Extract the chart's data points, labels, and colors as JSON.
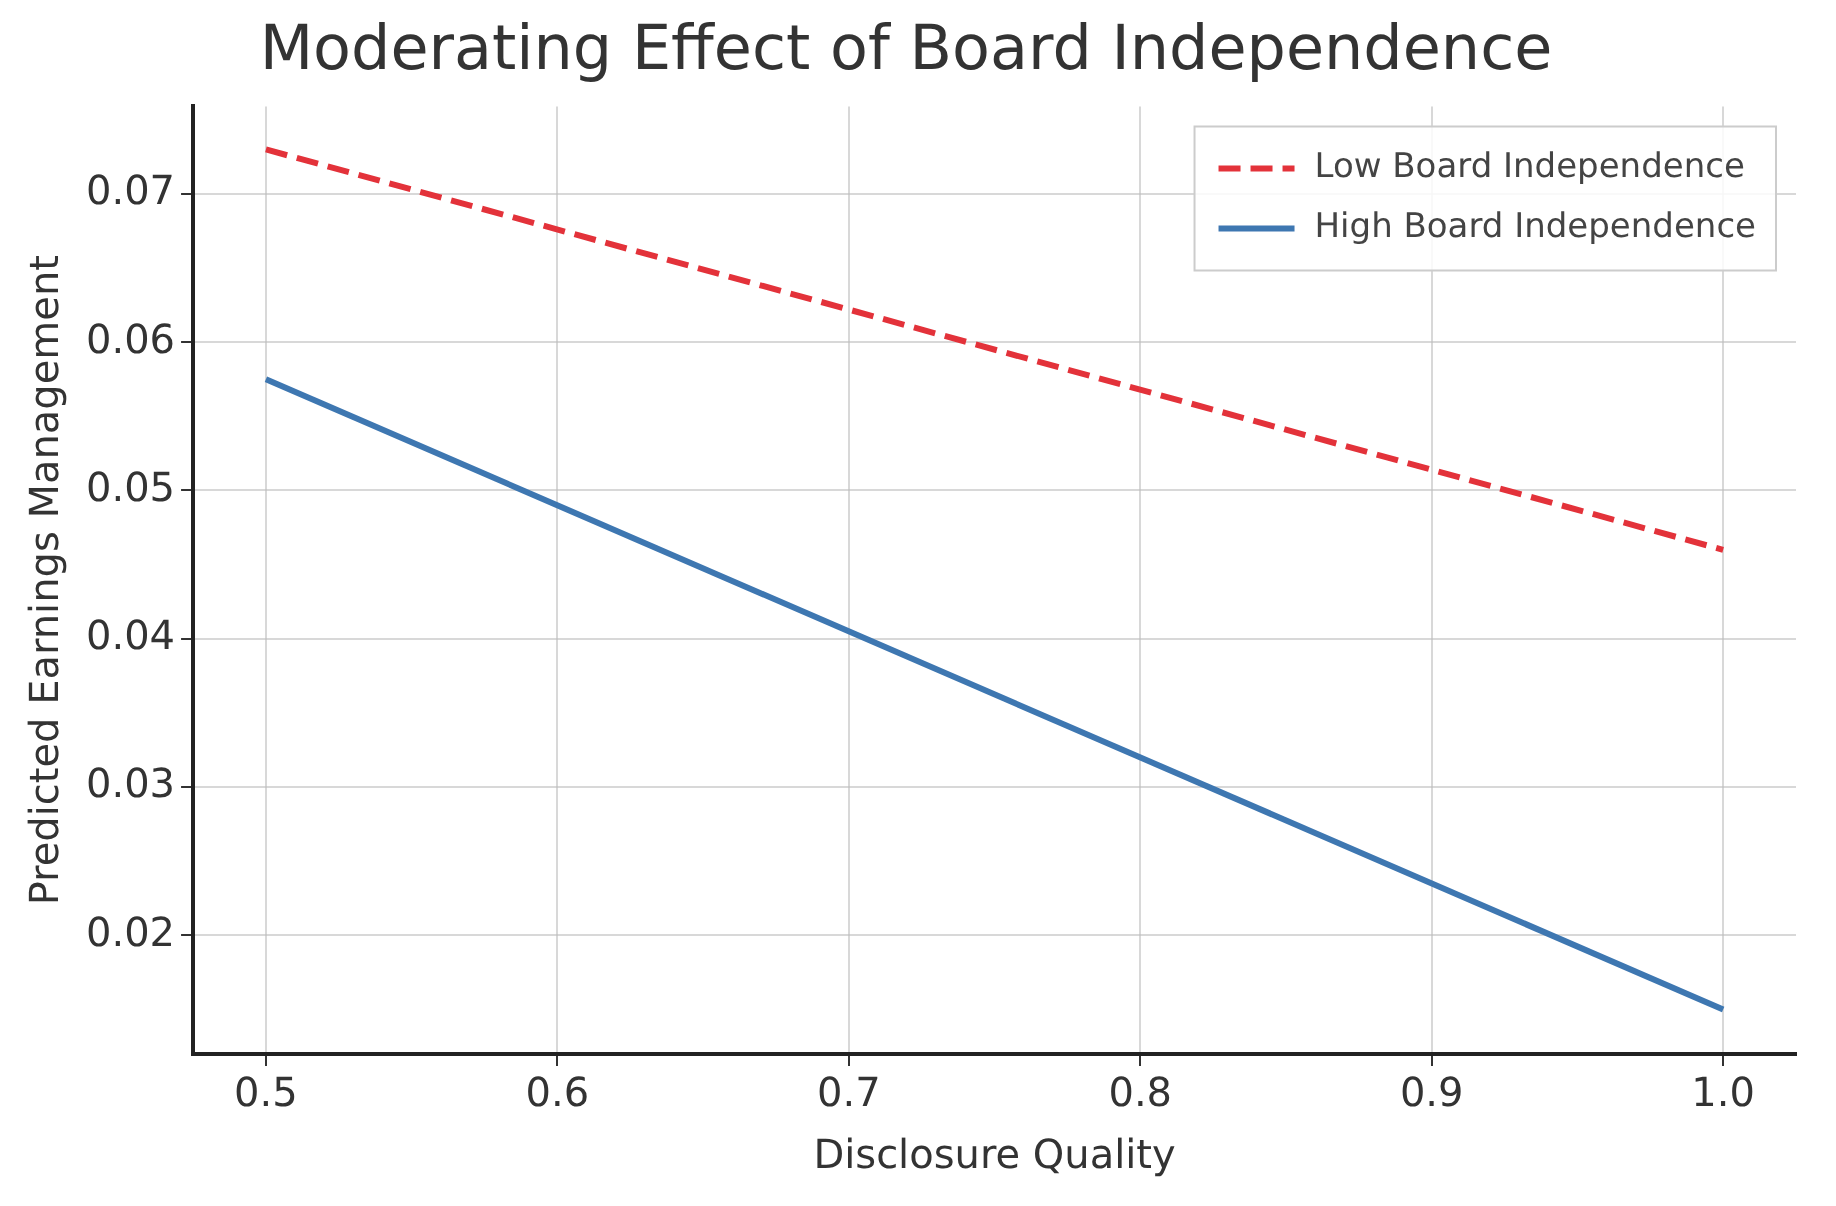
{
  "chart_data": {
    "type": "line",
    "title": "Moderating Effect of Board Independence",
    "xlabel": "Disclosure Quality",
    "ylabel": "Predicted Earnings Management",
    "x": [
      0.5,
      1.0
    ],
    "series": [
      {
        "name": "Low Board Independence",
        "color": "#e3323a",
        "values": [
          0.073,
          0.046
        ],
        "line_style": "dashed"
      },
      {
        "name": "High Board Independence",
        "color": "#3e77b1",
        "values": [
          0.0575,
          0.015
        ],
        "line_style": "solid"
      }
    ],
    "xlim": [
      0.475,
      1.025
    ],
    "xticks": [
      {
        "value": 0.5,
        "label": "0.5"
      },
      {
        "value": 0.6,
        "label": "0.6"
      },
      {
        "value": 0.7,
        "label": "0.7"
      },
      {
        "value": 0.8,
        "label": "0.8"
      },
      {
        "value": 0.9,
        "label": "0.9"
      },
      {
        "value": 1.0,
        "label": "1.0"
      }
    ],
    "ylim": [
      0.012,
      0.0759
    ],
    "yticks": [
      0.02,
      0.03,
      0.04,
      0.05,
      0.06,
      0.07
    ],
    "grid": true,
    "legend": "top right",
    "marker": "none"
  }
}
